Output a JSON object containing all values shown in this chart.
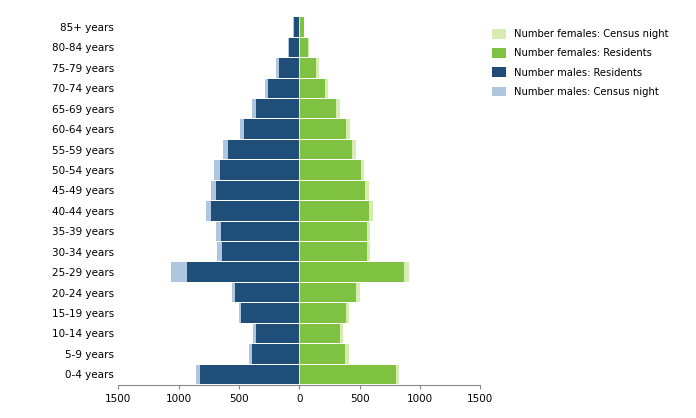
{
  "age_groups": [
    "0-4 years",
    "5-9 years",
    "10-14 years",
    "15-19 years",
    "20-24 years",
    "25-29 years",
    "30-34 years",
    "35-39 years",
    "40-44 years",
    "45-49 years",
    "50-54 years",
    "55-59 years",
    "60-64 years",
    "65-69 years",
    "70-74 years",
    "75-79 years",
    "80-84 years",
    "85+ years"
  ],
  "males_residents": [
    820,
    390,
    360,
    480,
    530,
    930,
    640,
    650,
    730,
    690,
    660,
    590,
    460,
    360,
    260,
    170,
    85,
    45
  ],
  "males_census_night": [
    860,
    420,
    385,
    500,
    560,
    1060,
    680,
    690,
    775,
    735,
    705,
    635,
    495,
    390,
    285,
    195,
    95,
    52
  ],
  "females_residents": [
    800,
    380,
    340,
    390,
    470,
    870,
    560,
    560,
    580,
    545,
    510,
    440,
    390,
    305,
    215,
    140,
    72,
    35
  ],
  "females_census_night": [
    830,
    410,
    360,
    410,
    500,
    910,
    590,
    590,
    610,
    575,
    540,
    470,
    420,
    335,
    235,
    160,
    82,
    42
  ],
  "color_males_residents": "#1f4e79",
  "color_males_census_night": "#aec6e0",
  "color_females_residents": "#7fc241",
  "color_females_census_night": "#d6ecb0",
  "xlim": 1500,
  "xticks": [
    -1500,
    -1000,
    -500,
    0,
    500,
    1000,
    1500
  ],
  "xticklabels": [
    "1500",
    "1000",
    "500",
    "0",
    "500",
    "1000",
    "1500"
  ],
  "legend_labels": [
    "Number females: Census night",
    "Number females: Residents",
    "Number males: Residents",
    "Number males: Census night"
  ],
  "legend_colors": [
    "#d6ecb0",
    "#7fc241",
    "#1f4e79",
    "#aec6e0"
  ],
  "background_color": "#ffffff"
}
